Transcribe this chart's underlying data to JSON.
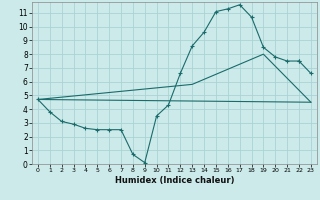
{
  "xlabel": "Humidex (Indice chaleur)",
  "bg_color": "#cceaea",
  "grid_color": "#aad4d4",
  "line_color": "#1a6b6b",
  "xlim": [
    -0.5,
    23.5
  ],
  "ylim": [
    0,
    11.8
  ],
  "xticks": [
    0,
    1,
    2,
    3,
    4,
    5,
    6,
    7,
    8,
    9,
    10,
    11,
    12,
    13,
    14,
    15,
    16,
    17,
    18,
    19,
    20,
    21,
    22,
    23
  ],
  "yticks": [
    0,
    1,
    2,
    3,
    4,
    5,
    6,
    7,
    8,
    9,
    10,
    11
  ],
  "line1_x": [
    0,
    1,
    2,
    3,
    4,
    5,
    6,
    7,
    8,
    9,
    10,
    11,
    12,
    13,
    14,
    15,
    16,
    17,
    18,
    19,
    20,
    21,
    22
  ],
  "line1_y": [
    4.7,
    3.8,
    3.1,
    2.9,
    2.6,
    2.5,
    2.5,
    2.5,
    0.7,
    0.1,
    3.5,
    4.3,
    6.6,
    8.6,
    9.6,
    11.1,
    11.3,
    11.6,
    10.7,
    8.5,
    7.8,
    7.5,
    7.5
  ],
  "line2_x": [
    0,
    23
  ],
  "line2_y": [
    4.7,
    4.5
  ],
  "line3_x": [
    0,
    13,
    19,
    23
  ],
  "line3_y": [
    4.7,
    5.8,
    8.0,
    4.5
  ],
  "line4_x": [
    22,
    23
  ],
  "line4_y": [
    7.5,
    6.6
  ]
}
